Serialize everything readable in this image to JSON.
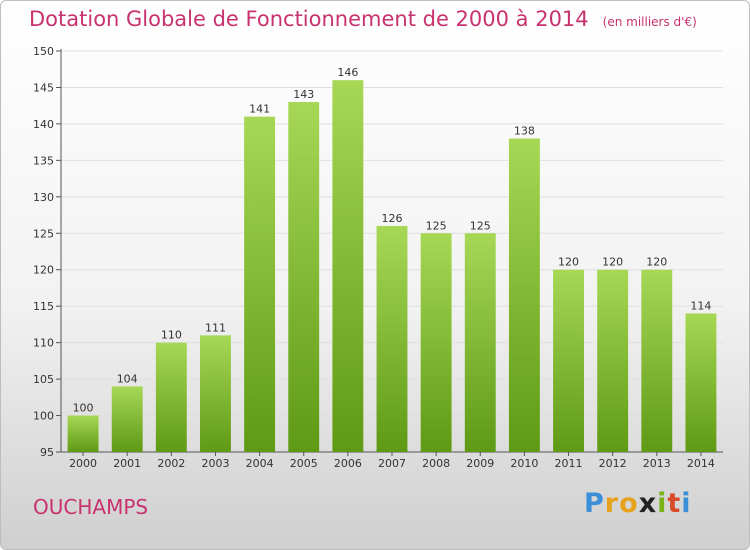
{
  "title": "Dotation Globale de Fonctionnement de 2000 à 2014",
  "unit_note": "(en milliers d'€)",
  "commune": "OUCHAMPS",
  "logo": {
    "letters": [
      "P",
      "r",
      "o",
      "x",
      "i",
      "t",
      "i"
    ],
    "colors": [
      "#3a8fd8",
      "#e6a21c",
      "#e6a21c",
      "#222222",
      "#7ab317",
      "#d84a2a",
      "#3a8fd8"
    ]
  },
  "colors": {
    "title": "#c8326e",
    "bar_top": "#a6d855",
    "bar_bottom": "#5f9a14",
    "grid": "#e0e0e0"
  },
  "chart_data": {
    "type": "bar",
    "categories": [
      "2000",
      "2001",
      "2002",
      "2003",
      "2004",
      "2005",
      "2006",
      "2007",
      "2008",
      "2009",
      "2010",
      "2011",
      "2012",
      "2013",
      "2014"
    ],
    "values": [
      100,
      104,
      110,
      111,
      141,
      143,
      146,
      126,
      125,
      125,
      138,
      120,
      120,
      120,
      114
    ],
    "ylim": [
      95,
      150
    ],
    "yticks": [
      95,
      100,
      105,
      110,
      115,
      120,
      125,
      130,
      135,
      140,
      145,
      150
    ],
    "grid": true
  }
}
